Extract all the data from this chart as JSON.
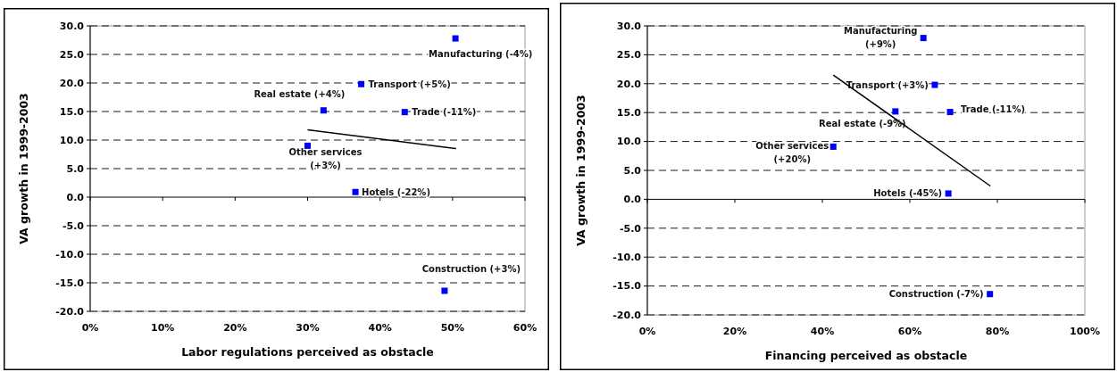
{
  "chart_data": [
    {
      "type": "scatter",
      "xlabel": "Labor regulations perceived as obstacle",
      "ylabel": "VA growth in 1999-2003",
      "xlim": [
        0,
        60
      ],
      "xticks": [
        {
          "value": 0,
          "label": "0%"
        },
        {
          "value": 10,
          "label": "10%"
        },
        {
          "value": 20,
          "label": "20%"
        },
        {
          "value": 30,
          "label": "30%"
        },
        {
          "value": 40,
          "label": "40%"
        },
        {
          "value": 50,
          "label": "50%"
        },
        {
          "value": 60,
          "label": "60%"
        }
      ],
      "ylim": [
        -20,
        30
      ],
      "yticks": [
        {
          "value": -20,
          "label": "-20.0"
        },
        {
          "value": -15,
          "label": "-15.0"
        },
        {
          "value": -10,
          "label": "-10.0"
        },
        {
          "value": -5,
          "label": "-5.0"
        },
        {
          "value": 0,
          "label": "0.0"
        },
        {
          "value": 5,
          "label": "5.0"
        },
        {
          "value": 10,
          "label": "10.0"
        },
        {
          "value": 15,
          "label": "15.0"
        },
        {
          "value": 20,
          "label": "20.0"
        },
        {
          "value": 25,
          "label": "25.0"
        },
        {
          "value": 30,
          "label": "30.0"
        }
      ],
      "grid": "y",
      "series": [
        {
          "color": "#0000ff",
          "marker": "square",
          "x": [
            50.4,
            37.4,
            32.2,
            43.4,
            30.0,
            36.6,
            48.9
          ],
          "values": [
            27.8,
            19.8,
            15.2,
            14.9,
            9.0,
            0.9,
            -16.4
          ]
        },
        {
          "type": "line",
          "color": "#000000",
          "marker": "none",
          "line_style": "solid",
          "x": [
            30.0,
            50.5
          ],
          "values": [
            11.8,
            8.5
          ]
        }
      ],
      "annotations": [
        {
          "text": "Manufacturing (-4%)",
          "x": 50.4,
          "y": 27.8
        },
        {
          "text": "Transport (+5%)",
          "x": 37.4,
          "y": 19.8
        },
        {
          "text": "Real estate (+4%)",
          "x": 32.2,
          "y": 15.2
        },
        {
          "text": "Trade (-11%)",
          "x": 43.4,
          "y": 14.9
        },
        {
          "text": "Other services (+3%)",
          "x": 30.0,
          "y": 9.0
        },
        {
          "text": "Hotels (-22%)",
          "x": 36.6,
          "y": 0.9
        },
        {
          "text": "Construction (+3%)",
          "x": 48.9,
          "y": -16.4
        }
      ]
    },
    {
      "type": "scatter",
      "xlabel": "Financing perceived as obstacle",
      "ylabel": "VA growth in 1999-2003",
      "xlim": [
        0,
        100
      ],
      "xticks": [
        {
          "value": 0,
          "label": "0%"
        },
        {
          "value": 20,
          "label": "20%"
        },
        {
          "value": 40,
          "label": "40%"
        },
        {
          "value": 60,
          "label": "60%"
        },
        {
          "value": 80,
          "label": "80%"
        },
        {
          "value": 100,
          "label": "100%"
        }
      ],
      "ylim": [
        -20,
        30
      ],
      "yticks": [
        {
          "value": -20,
          "label": "-20.0"
        },
        {
          "value": -15,
          "label": "-15.0"
        },
        {
          "value": -10,
          "label": "-10.0"
        },
        {
          "value": -5,
          "label": "-5.0"
        },
        {
          "value": 0,
          "label": "0.0"
        },
        {
          "value": 5,
          "label": "5.0"
        },
        {
          "value": 10,
          "label": "10.0"
        },
        {
          "value": 15,
          "label": "15.0"
        },
        {
          "value": 20,
          "label": "20.0"
        },
        {
          "value": 25,
          "label": "25.0"
        },
        {
          "value": 30,
          "label": "30.0"
        }
      ],
      "grid": "y",
      "series": [
        {
          "color": "#0000ff",
          "marker": "square",
          "x": [
            63.1,
            65.7,
            56.7,
            69.2,
            42.5,
            68.8,
            78.3
          ],
          "values": [
            27.9,
            19.8,
            15.2,
            15.1,
            9.1,
            1.0,
            -16.4
          ]
        },
        {
          "type": "line",
          "color": "#000000",
          "marker": "none",
          "line_style": "solid",
          "x": [
            42.5,
            78.4
          ],
          "values": [
            21.5,
            2.3
          ]
        }
      ],
      "annotations": [
        {
          "text": "Manufacturing (+9%)",
          "x": 63.1,
          "y": 27.9
        },
        {
          "text": "Transport (+3%)",
          "x": 65.7,
          "y": 19.8
        },
        {
          "text": "Real estate (-9%)",
          "x": 56.7,
          "y": 15.2
        },
        {
          "text": "Trade (-11%)",
          "x": 69.2,
          "y": 15.1
        },
        {
          "text": "Other services (+20%)",
          "x": 42.5,
          "y": 9.1
        },
        {
          "text": "Hotels (-45%)",
          "x": 68.8,
          "y": 1.0
        },
        {
          "text": "Construction (-7%)",
          "x": 78.3,
          "y": -16.4
        }
      ]
    }
  ]
}
